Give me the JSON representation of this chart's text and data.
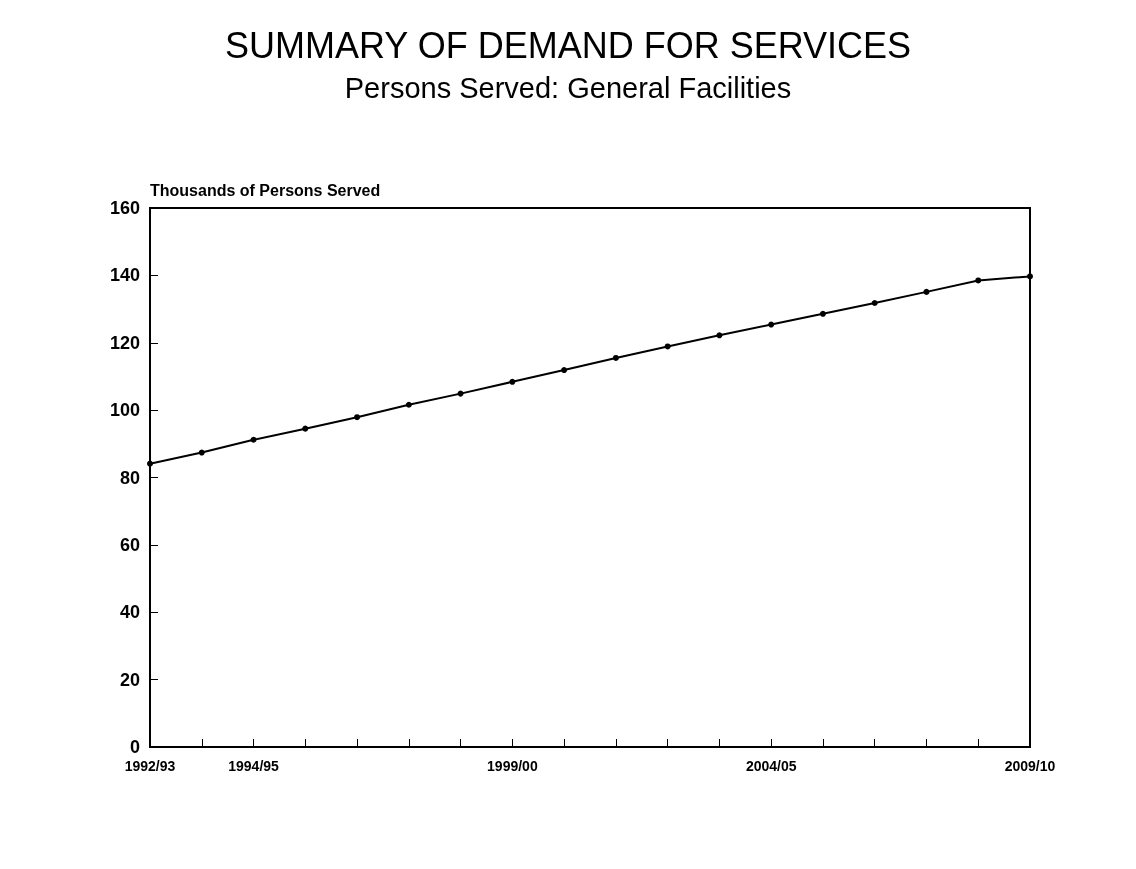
{
  "chart_data": {
    "type": "line",
    "title": "SUMMARY OF DEMAND FOR SERVICES",
    "subtitle": "Persons Served: General Facilities",
    "ylabel": "Thousands of Persons Served",
    "categories": [
      "1992/93",
      null,
      "1994/95",
      null,
      null,
      null,
      null,
      "1999/00",
      null,
      null,
      null,
      null,
      "2004/05",
      null,
      null,
      null,
      null,
      "2009/10"
    ],
    "series": [
      {
        "color": "#000000",
        "values": [
          84.1,
          87.4,
          91.2,
          94.5,
          97.9,
          101.6,
          104.9,
          108.4,
          111.9,
          115.5,
          118.9,
          122.2,
          125.4,
          128.6,
          131.8,
          135.1,
          138.5,
          139.7
        ]
      }
    ],
    "ylim": [
      0,
      160
    ],
    "yticks": [
      0,
      20,
      40,
      60,
      80,
      100,
      120,
      140,
      160
    ],
    "grid": false,
    "marker": "circle",
    "line_style": "solid"
  }
}
